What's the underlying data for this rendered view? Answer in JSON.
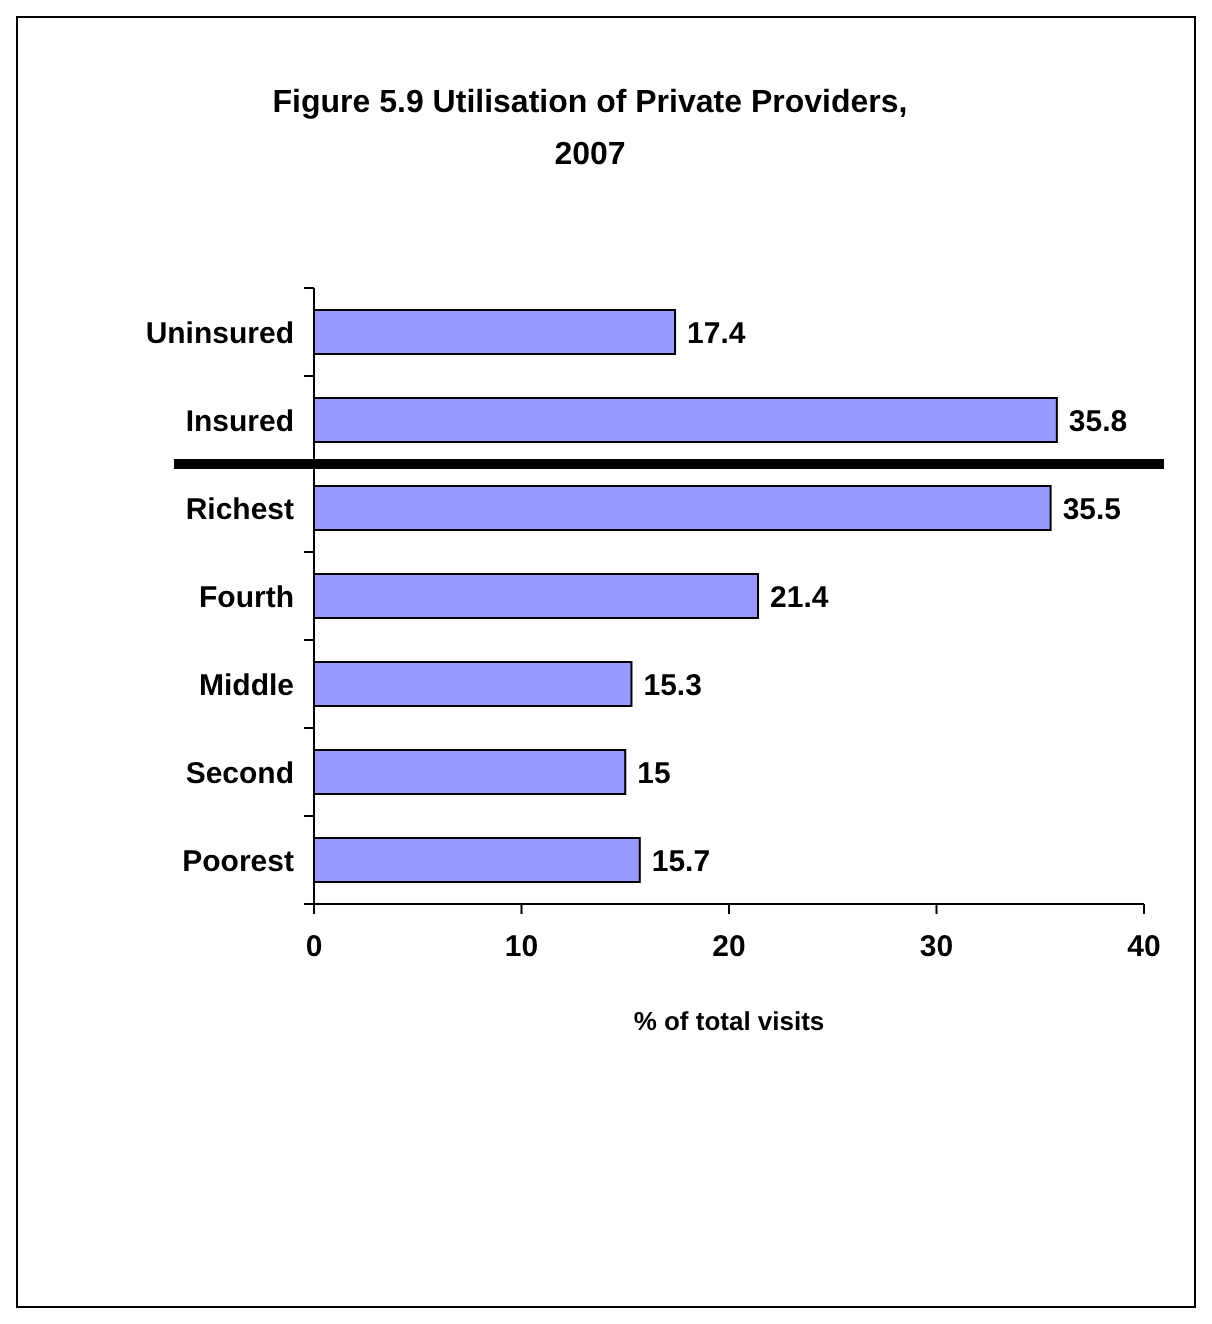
{
  "chart_data": {
    "type": "bar",
    "orientation": "horizontal",
    "title": "Figure 5.9 Utilisation of Private Providers, 2007",
    "xlabel": "% of total visits",
    "categories": [
      "Uninsured",
      "Insured",
      "Richest",
      "Fourth",
      "Middle",
      "Second",
      "Poorest"
    ],
    "values": [
      17.4,
      35.8,
      35.5,
      21.4,
      15.3,
      15,
      15.7
    ],
    "color": "#9999ff",
    "xlim": [
      0,
      40
    ],
    "xticks": [
      0,
      10,
      20,
      30,
      40
    ],
    "data_labels": true
  }
}
